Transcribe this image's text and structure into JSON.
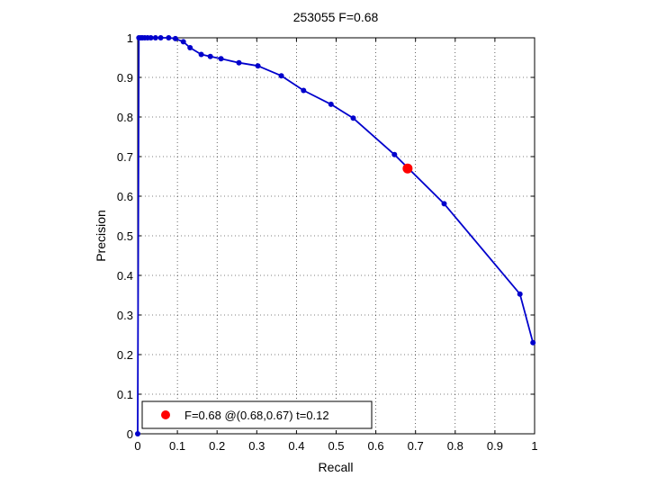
{
  "chart_data": {
    "type": "line",
    "title": "253055 F=0.68",
    "xlabel": "Recall",
    "ylabel": "Precision",
    "xlim": [
      0,
      1
    ],
    "ylim": [
      0,
      1
    ],
    "xticks": [
      0,
      0.1,
      0.2,
      0.3,
      0.4,
      0.5,
      0.6,
      0.7,
      0.8,
      0.9,
      1
    ],
    "yticks": [
      0,
      0.1,
      0.2,
      0.3,
      0.4,
      0.5,
      0.6,
      0.7,
      0.8,
      0.9,
      1
    ],
    "xtick_labels": [
      "0",
      "0.1",
      "0.2",
      "0.3",
      "0.4",
      "0.5",
      "0.6",
      "0.7",
      "0.8",
      "0.9",
      "1"
    ],
    "ytick_labels": [
      "0",
      "0.1",
      "0.2",
      "0.3",
      "0.4",
      "0.5",
      "0.6",
      "0.7",
      "0.8",
      "0.9",
      "1"
    ],
    "grid": true,
    "grid_style": "dotted",
    "series": [
      {
        "color": "#0000cc",
        "points": [
          [
            0,
            0
          ],
          [
            0.003,
            1.0
          ],
          [
            0.008,
            1.0
          ],
          [
            0.012,
            1.0
          ],
          [
            0.018,
            1.0
          ],
          [
            0.025,
            1.0
          ],
          [
            0.033,
            1.0
          ],
          [
            0.045,
            1.0
          ],
          [
            0.058,
            1.0
          ],
          [
            0.078,
            1.0
          ],
          [
            0.095,
            0.998
          ],
          [
            0.115,
            0.99
          ],
          [
            0.132,
            0.975
          ],
          [
            0.16,
            0.958
          ],
          [
            0.183,
            0.953
          ],
          [
            0.21,
            0.947
          ],
          [
            0.255,
            0.937
          ],
          [
            0.303,
            0.929
          ],
          [
            0.362,
            0.904
          ],
          [
            0.418,
            0.867
          ],
          [
            0.487,
            0.832
          ],
          [
            0.543,
            0.797
          ],
          [
            0.647,
            0.705
          ],
          [
            0.772,
            0.581
          ],
          [
            0.963,
            0.353
          ],
          [
            0.996,
            0.23
          ]
        ]
      }
    ],
    "highlight": {
      "x": 0.68,
      "y": 0.67,
      "color": "#ff0000"
    },
    "legend": {
      "position": "bottom-left",
      "label": "F=0.68 @(0.68,0.67) t=0.12"
    }
  }
}
